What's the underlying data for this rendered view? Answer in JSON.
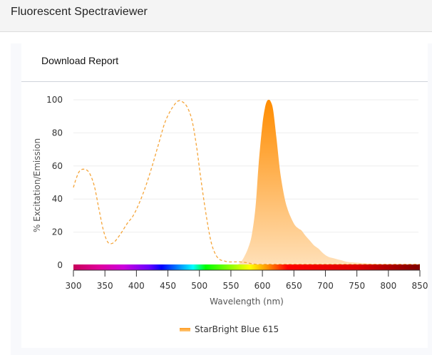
{
  "header": {
    "title": "Fluorescent Spectraviewer"
  },
  "card": {
    "download_label": "Download Report"
  },
  "colors": {
    "excitation": "#f5a53a",
    "emission_top": "#ff8c00",
    "emission_bottom": "#ffe0b8",
    "grid": "#eeeeee",
    "axis": "#333333"
  },
  "legend": {
    "items": [
      {
        "label": "StarBright Blue 615"
      }
    ]
  },
  "chart_data": {
    "type": "area",
    "title": "",
    "xlabel": "Wavelength (nm)",
    "ylabel": "% Excitation/Emission",
    "xlim": [
      300,
      850
    ],
    "ylim": [
      0,
      100
    ],
    "xticks": [
      300,
      350,
      400,
      450,
      500,
      550,
      600,
      650,
      700,
      750,
      800,
      850
    ],
    "yticks": [
      0,
      20,
      40,
      60,
      80,
      100
    ],
    "grid": true,
    "legend_position": "bottom",
    "series": [
      {
        "name": "StarBright Blue 615 Excitation",
        "style": "dashed-line",
        "x": [
          300,
          305,
          310,
          317,
          325,
          333,
          340,
          347,
          353,
          358,
          365,
          375,
          385,
          395,
          405,
          415,
          425,
          435,
          445,
          455,
          465,
          472,
          480,
          488,
          495,
          502,
          510,
          518,
          525,
          532,
          540,
          547,
          555,
          565,
          575,
          590,
          610,
          650,
          700,
          750,
          800,
          850
        ],
        "values": [
          47,
          53,
          57,
          58,
          56,
          48,
          35,
          22,
          15,
          13,
          14,
          19,
          25,
          30,
          38,
          48,
          60,
          73,
          86,
          94,
          99,
          99,
          96,
          88,
          73,
          53,
          32,
          15,
          7,
          3.5,
          2.5,
          2,
          2,
          2,
          1.5,
          0.5,
          0.5,
          0.5,
          0.5,
          0.5,
          0.5,
          0.5
        ]
      },
      {
        "name": "StarBright Blue 615 Emission",
        "style": "filled-area",
        "x": [
          560,
          566,
          571,
          577,
          583,
          589,
          594,
          600,
          604,
          607,
          610,
          613,
          617,
          622,
          628,
          634,
          639,
          645,
          652,
          658,
          662,
          668,
          675,
          682,
          689,
          697,
          705,
          715,
          725,
          735,
          750,
          770,
          800,
          850
        ],
        "values": [
          0,
          2,
          5,
          10,
          18,
          35,
          61,
          85,
          95,
          99,
          100,
          99,
          94,
          78,
          57,
          43,
          35,
          29,
          24,
          22,
          21,
          18,
          15,
          12,
          10,
          7,
          5,
          4,
          3,
          2,
          1.5,
          1,
          0.5,
          0
        ]
      }
    ],
    "colorbar": {
      "stops": [
        {
          "nm": 300,
          "color": "#c8005a"
        },
        {
          "nm": 340,
          "color": "#e0009a"
        },
        {
          "nm": 380,
          "color": "#cc00dd"
        },
        {
          "nm": 420,
          "color": "#6a00ff"
        },
        {
          "nm": 440,
          "color": "#0000ff"
        },
        {
          "nm": 490,
          "color": "#00ffff"
        },
        {
          "nm": 510,
          "color": "#00ff00"
        },
        {
          "nm": 580,
          "color": "#ffff00"
        },
        {
          "nm": 610,
          "color": "#ff8800"
        },
        {
          "nm": 640,
          "color": "#ff0000"
        },
        {
          "nm": 750,
          "color": "#dd0000"
        },
        {
          "nm": 850,
          "color": "#800000"
        }
      ]
    }
  }
}
